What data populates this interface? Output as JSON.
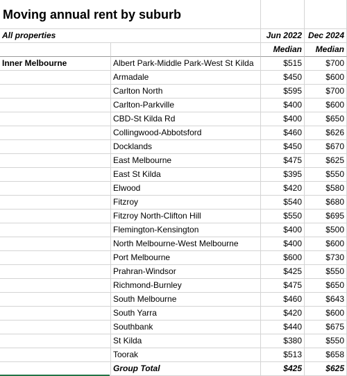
{
  "sheet": {
    "title": "Moving annual rent by suburb",
    "subtitle": "All properties",
    "col_c_header": "Jun 2022",
    "col_d_header": "Dec 2024",
    "col_c_sub": "Median",
    "col_d_sub": "Median",
    "region": "Inner Melbourne",
    "rows": [
      {
        "suburb": "Albert Park-Middle Park-West St Kilda",
        "jun2022": "$515",
        "dec2024": "$700"
      },
      {
        "suburb": "Armadale",
        "jun2022": "$450",
        "dec2024": "$600"
      },
      {
        "suburb": "Carlton North",
        "jun2022": "$595",
        "dec2024": "$700"
      },
      {
        "suburb": "Carlton-Parkville",
        "jun2022": "$400",
        "dec2024": "$600"
      },
      {
        "suburb": "CBD-St Kilda Rd",
        "jun2022": "$400",
        "dec2024": "$650"
      },
      {
        "suburb": "Collingwood-Abbotsford",
        "jun2022": "$460",
        "dec2024": "$626"
      },
      {
        "suburb": "Docklands",
        "jun2022": "$450",
        "dec2024": "$670"
      },
      {
        "suburb": "East Melbourne",
        "jun2022": "$475",
        "dec2024": "$625"
      },
      {
        "suburb": "East St Kilda",
        "jun2022": "$395",
        "dec2024": "$550"
      },
      {
        "suburb": "Elwood",
        "jun2022": "$420",
        "dec2024": "$580"
      },
      {
        "suburb": "Fitzroy",
        "jun2022": "$540",
        "dec2024": "$680"
      },
      {
        "suburb": "Fitzroy North-Clifton Hill",
        "jun2022": "$550",
        "dec2024": "$695"
      },
      {
        "suburb": "Flemington-Kensington",
        "jun2022": "$400",
        "dec2024": "$500"
      },
      {
        "suburb": "North Melbourne-West Melbourne",
        "jun2022": "$400",
        "dec2024": "$600"
      },
      {
        "suburb": "Port Melbourne",
        "jun2022": "$600",
        "dec2024": "$730"
      },
      {
        "suburb": "Prahran-Windsor",
        "jun2022": "$425",
        "dec2024": "$550"
      },
      {
        "suburb": "Richmond-Burnley",
        "jun2022": "$475",
        "dec2024": "$650"
      },
      {
        "suburb": "South Melbourne",
        "jun2022": "$460",
        "dec2024": "$643"
      },
      {
        "suburb": "South Yarra",
        "jun2022": "$420",
        "dec2024": "$600"
      },
      {
        "suburb": "Southbank",
        "jun2022": "$440",
        "dec2024": "$675"
      },
      {
        "suburb": "St Kilda",
        "jun2022": "$380",
        "dec2024": "$550"
      },
      {
        "suburb": "Toorak",
        "jun2022": "$513",
        "dec2024": "$658"
      }
    ],
    "total": {
      "label": "Group Total",
      "jun2022": "$425",
      "dec2024": "$625"
    },
    "colors": {
      "gridline": "#d4d4d4",
      "active_cell_accent": "#217346"
    }
  }
}
